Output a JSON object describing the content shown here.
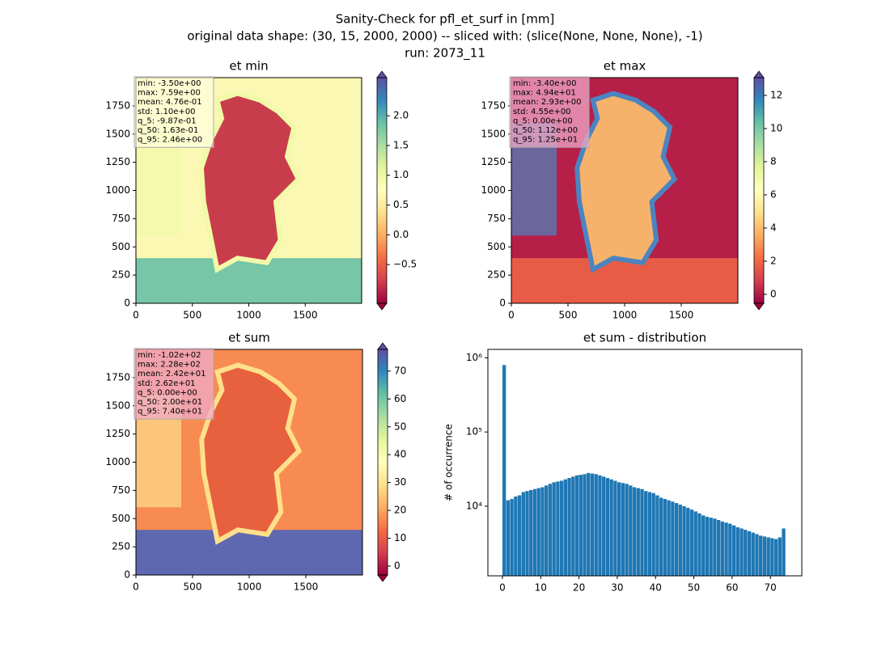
{
  "title": "Sanity-Check for pfl_et_surf in [mm]",
  "subtitle": "original data shape: (30, 15, 2000, 2000) -- sliced with: (slice(None, None, None), -1)",
  "run": "run: 2073_11",
  "chart_data": [
    {
      "type": "heatmap",
      "title": "et min",
      "colormap": "Spectral",
      "xlim": [
        0,
        2000
      ],
      "ylim": [
        0,
        2000
      ],
      "xticks": [
        0,
        500,
        1000,
        1500
      ],
      "yticks": [
        0,
        250,
        500,
        750,
        1000,
        1250,
        1500,
        1750
      ],
      "clim": [
        -1.15,
        2.64
      ],
      "cticks": [
        {
          "value": -0.5,
          "label": "−0.5"
        },
        {
          "value": 0,
          "label": "0.0"
        },
        {
          "value": 0.5,
          "label": "0.5"
        },
        {
          "value": 1,
          "label": "1.0"
        },
        {
          "value": 1.5,
          "label": "1.5"
        },
        {
          "value": 2,
          "label": "2.0"
        }
      ],
      "annotations": [
        "min: -3.50e+00",
        "max: 7.59e+00",
        "mean: 4.76e-01",
        "std: 1.10e+00",
        "q_5: -9.87e-01",
        "q_50: 1.63e-01",
        "q_95: 2.46e+00"
      ]
    },
    {
      "type": "heatmap",
      "title": "et max",
      "colormap": "Spectral",
      "xlim": [
        0,
        2000
      ],
      "ylim": [
        0,
        2000
      ],
      "xticks": [
        0,
        500,
        1000,
        1500
      ],
      "yticks": [
        0,
        250,
        500,
        750,
        1000,
        1250,
        1500,
        1750
      ],
      "clim": [
        -0.54,
        13.07
      ],
      "cticks": [
        0,
        2,
        4,
        6,
        8,
        10,
        12
      ],
      "annotations": [
        "min: -3.40e+00",
        "max: 4.94e+01",
        "mean: 2.93e+00",
        "std: 4.55e+00",
        "q_5: 0.00e+00",
        "q_50: 1.12e+00",
        "q_95: 1.25e+01"
      ]
    },
    {
      "type": "heatmap",
      "title": "et sum",
      "colormap": "Spectral",
      "xlim": [
        0,
        2000
      ],
      "ylim": [
        0,
        2000
      ],
      "xticks": [
        0,
        500,
        1000,
        1500
      ],
      "yticks": [
        0,
        250,
        500,
        750,
        1000,
        1250,
        1500,
        1750
      ],
      "clim": [
        -3.2,
        77.8
      ],
      "cticks": [
        0,
        10,
        20,
        30,
        40,
        50,
        60,
        70
      ],
      "annotations": [
        "min: -1.02e+02",
        "max: 2.28e+02",
        "mean: 2.42e+01",
        "std: 2.62e+01",
        "q_5: 0.00e+00",
        "q_50: 2.00e+01",
        "q_95: 7.40e+01"
      ]
    },
    {
      "type": "histogram",
      "title": "et sum - distribution",
      "y_label": "# of occurrence",
      "color": "#1f77b4",
      "log_y": true,
      "xlim": [
        -3.8,
        78.2
      ],
      "ylim": [
        1150,
        1300000
      ],
      "xticks": [
        0,
        10,
        20,
        30,
        40,
        50,
        60,
        70
      ],
      "yticks": [
        {
          "value": 10000,
          "label": "10⁴"
        },
        {
          "value": 100000,
          "label": "10⁵"
        },
        {
          "value": 1000000,
          "label": "10⁶"
        }
      ],
      "bins": [
        0,
        1,
        2,
        3,
        4,
        5,
        6,
        7,
        8,
        9,
        10,
        11,
        12,
        13,
        14,
        15,
        16,
        17,
        18,
        19,
        20,
        21,
        22,
        23,
        24,
        25,
        26,
        27,
        28,
        29,
        30,
        31,
        32,
        33,
        34,
        35,
        36,
        37,
        38,
        39,
        40,
        41,
        42,
        43,
        44,
        45,
        46,
        47,
        48,
        49,
        50,
        51,
        52,
        53,
        54,
        55,
        56,
        57,
        58,
        59,
        60,
        61,
        62,
        63,
        64,
        65,
        66,
        67,
        68,
        69,
        70,
        71,
        72,
        73,
        74
      ],
      "counts": [
        800000,
        12000,
        12500,
        13500,
        14000,
        15500,
        16000,
        16500,
        17000,
        17500,
        18000,
        19000,
        20000,
        21000,
        21500,
        22000,
        23000,
        24000,
        25000,
        26000,
        26500,
        27000,
        28000,
        27500,
        27000,
        26000,
        25000,
        24000,
        23000,
        22000,
        21000,
        20500,
        20000,
        19000,
        18000,
        17500,
        17000,
        16000,
        15500,
        15000,
        14000,
        13000,
        12500,
        12000,
        11500,
        11000,
        10500,
        10000,
        9500,
        9000,
        8500,
        8000,
        7500,
        7200,
        7000,
        6800,
        6500,
        6200,
        6000,
        5800,
        5500,
        5200,
        5000,
        4800,
        4600,
        4400,
        4200,
        4000,
        3900,
        3800,
        3700,
        3600,
        3800,
        5000
      ]
    }
  ]
}
